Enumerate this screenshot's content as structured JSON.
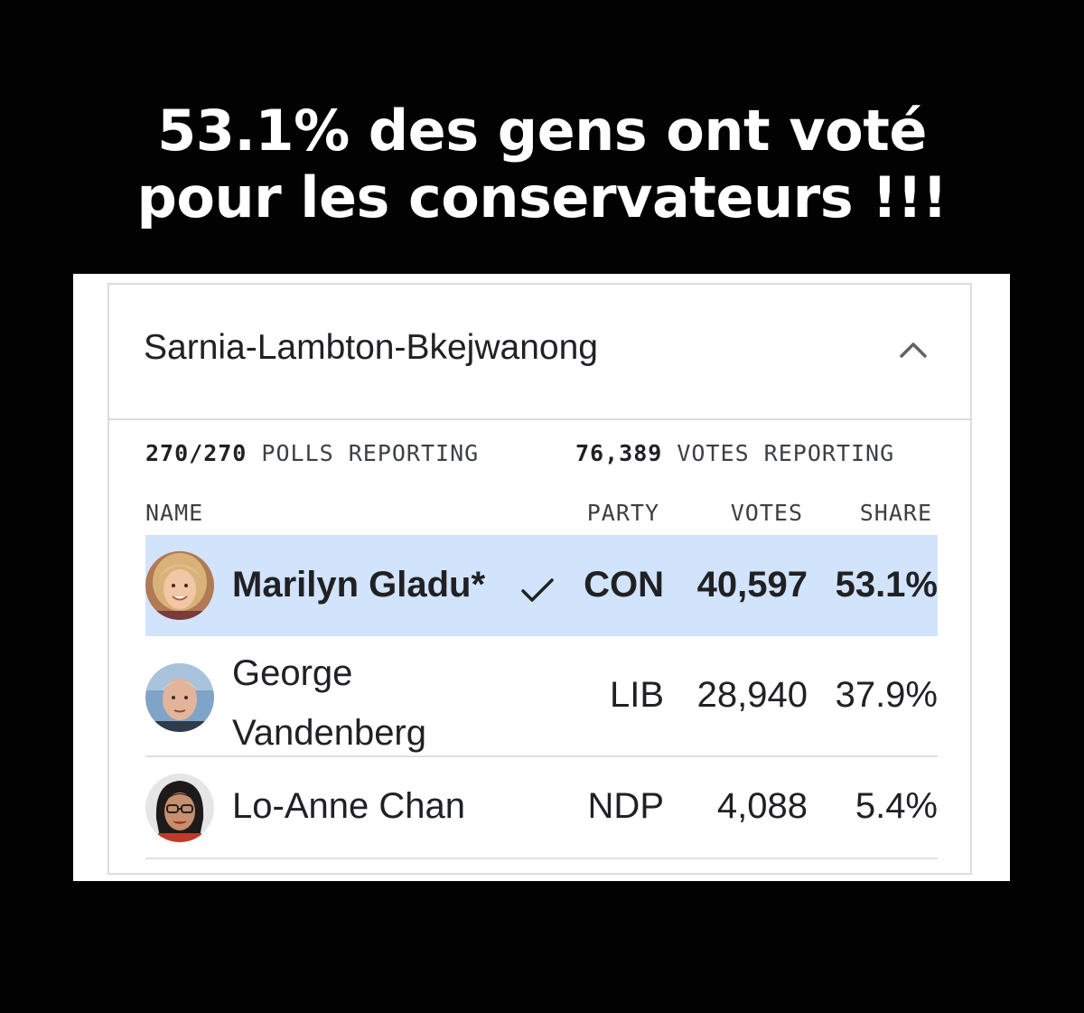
{
  "headline": {
    "line1": "53.1% des gens ont voté",
    "line2": "pour les conservateurs !!!"
  },
  "card": {
    "riding": "Sarnia-Lambton-Bkejwanong",
    "collapse_icon": "chevron-up-icon",
    "polls_count": "270/270",
    "polls_label": "POLLS REPORTING",
    "votes_count": "76,389",
    "votes_label": "VOTES REPORTING",
    "columns": {
      "name": "NAME",
      "party": "PARTY",
      "votes": "VOTES",
      "share": "SHARE"
    },
    "candidates": [
      {
        "name": "Marilyn Gladu*",
        "party": "CON",
        "votes": "40,597",
        "share": "53.1%",
        "winner": true,
        "winner_icon": "checkmark-icon"
      },
      {
        "name": "George Vandenberg",
        "party": "LIB",
        "votes": "28,940",
        "share": "37.9%",
        "winner": false
      },
      {
        "name": "Lo-Anne Chan",
        "party": "NDP",
        "votes": "4,088",
        "share": "5.4%",
        "winner": false
      }
    ],
    "colors": {
      "leader_highlight": "#d2e3fc",
      "border": "#dadce0"
    }
  }
}
